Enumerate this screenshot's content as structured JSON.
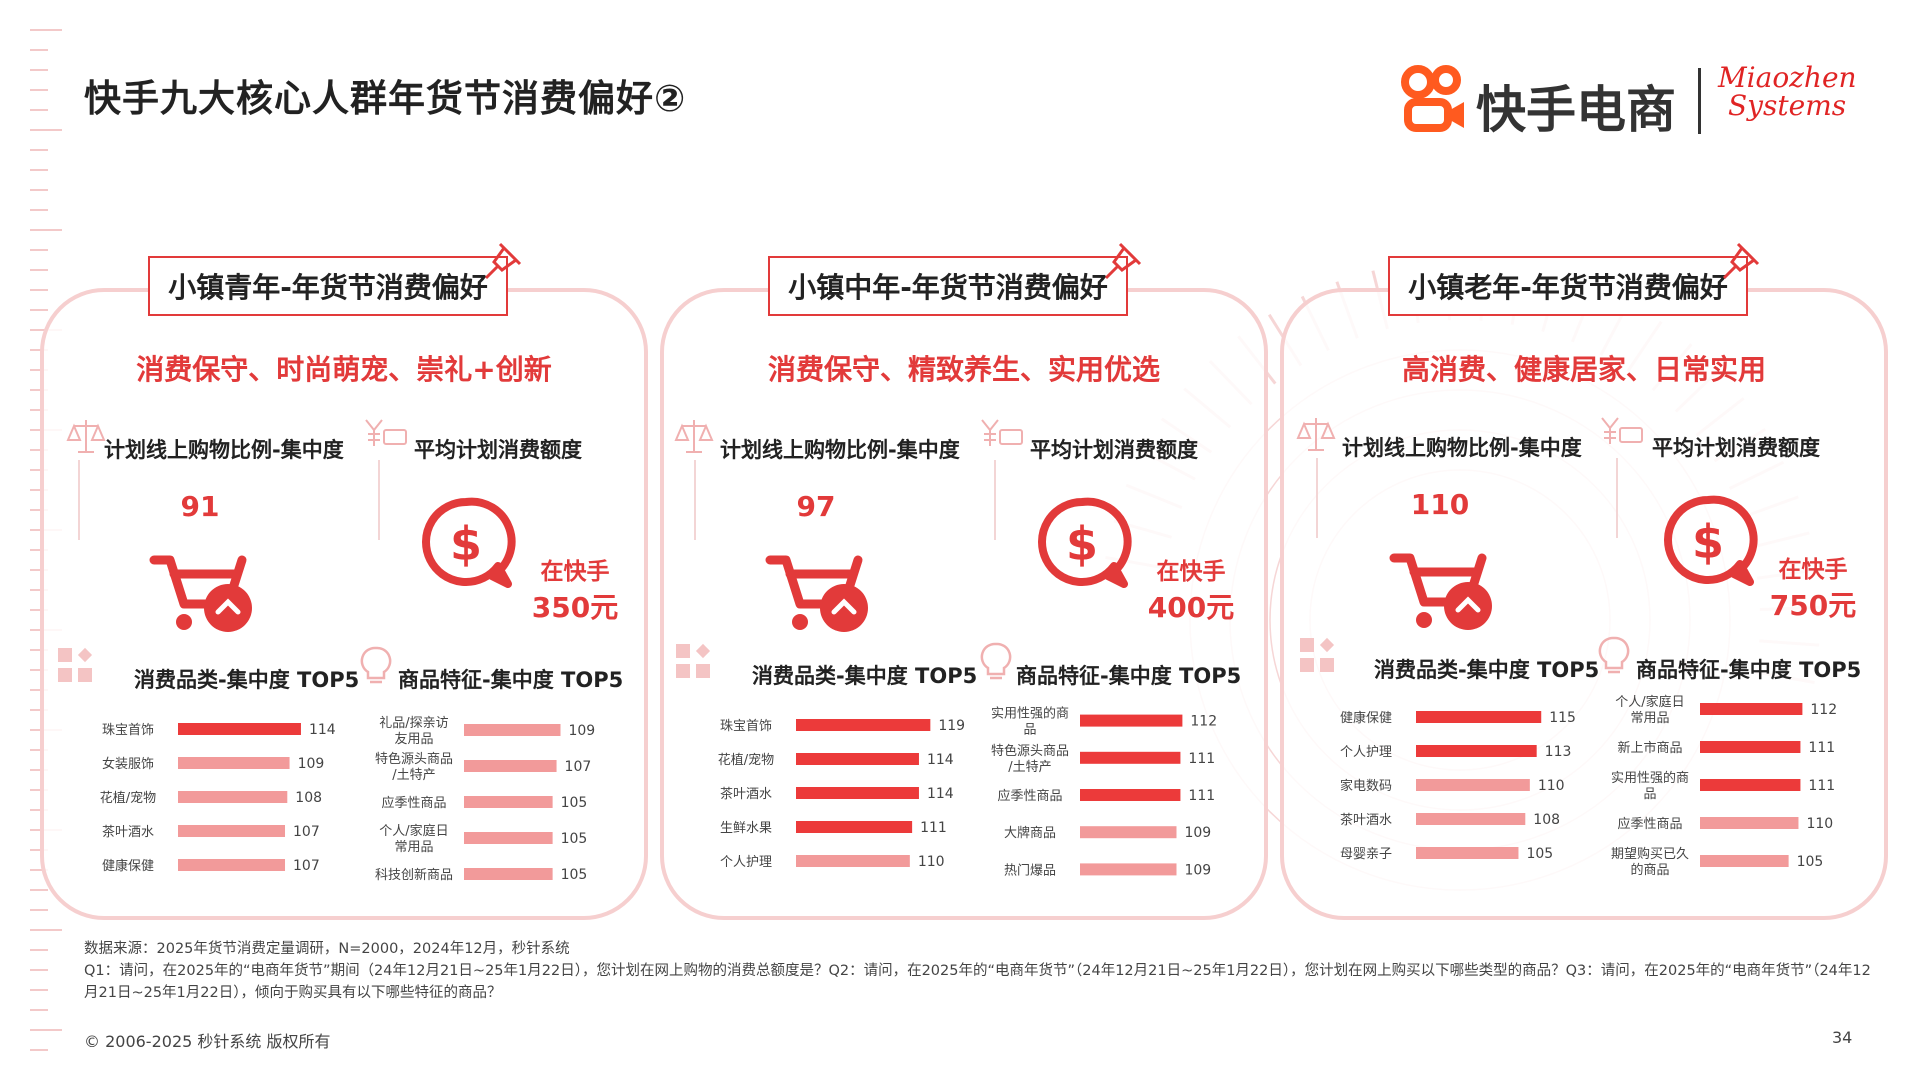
{
  "page": {
    "title": "快手九大核心人群年货节消费偏好②",
    "brand_kuaishou": "快手电商",
    "brand_miaozhen_line1": "Miaozhen",
    "brand_miaozhen_line2": "Systems",
    "footnote_source": "数据来源：2025年货节消费定量调研，N=2000，2024年12月，秒针系统",
    "footnote_questions": "Q1：请问，在2025年的“电商年货节”期间（24年12月21日~25年1月22日），您计划在网上购物的消费总额度是？Q2：请问，在2025年的“电商年货节”（24年12月21日~25年1月22日），您计划在网上购买以下哪些类型的商品？Q3：请问，在2025年的“电商年货节”（24年12月21日~25年1月22日），倾向于购买具有以下哪些特征的商品？",
    "copyright": "© 2006-2025 秒针系统 版权所有",
    "page_number": "34"
  },
  "labels": {
    "online_ratio": "计划线上购物比例-集中度",
    "avg_spend": "平均计划消费额度",
    "category_top5": "消费品类-集中度 TOP5",
    "feature_top5": "商品特征-集中度 TOP5",
    "on_kuaishou": "在快手"
  },
  "colors": {
    "accent": "#e23a3a",
    "bar_strong": "#ec3a3a",
    "bar_light": "#f29a9a"
  },
  "panels": [
    {
      "title": "小镇青年-年货节消费偏好",
      "slogan": "消费保守、时尚萌宠、崇礼+创新",
      "online_index": "91",
      "avg_spend": "350元"
    },
    {
      "title": "小镇中年-年货节消费偏好",
      "slogan": "消费保守、精致养生、实用优选",
      "online_index": "97",
      "avg_spend": "400元"
    },
    {
      "title": "小镇老年-年货节消费偏好",
      "slogan": "高消费、健康居家、日常实用",
      "online_index": "110",
      "avg_spend": "750元"
    }
  ],
  "chart_data": [
    {
      "type": "bar",
      "orientation": "horizontal",
      "title": "消费品类-集中度 TOP5",
      "categories": [
        "珠宝首饰",
        "女装服饰",
        "花植/宠物",
        "茶叶酒水",
        "健康保健"
      ],
      "values": [
        114,
        109,
        108,
        107,
        107
      ],
      "highlight": [
        true,
        false,
        false,
        false,
        false
      ]
    },
    {
      "type": "bar",
      "orientation": "horizontal",
      "title": "商品特征-集中度 TOP5",
      "categories": [
        "礼品/探亲访友用品",
        "特色源头商品/土特产",
        "应季性商品",
        "个人/家庭日常用品",
        "科技创新商品"
      ],
      "values": [
        109,
        107,
        105,
        105,
        105
      ],
      "highlight": [
        false,
        false,
        false,
        false,
        false
      ]
    },
    {
      "type": "bar",
      "orientation": "horizontal",
      "title": "消费品类-集中度 TOP5",
      "categories": [
        "珠宝首饰",
        "花植/宠物",
        "茶叶酒水",
        "生鲜水果",
        "个人护理"
      ],
      "values": [
        119,
        114,
        114,
        111,
        110
      ],
      "highlight": [
        true,
        true,
        true,
        true,
        false
      ]
    },
    {
      "type": "bar",
      "orientation": "horizontal",
      "title": "商品特征-集中度 TOP5",
      "categories": [
        "实用性强的商品",
        "特色源头商品/土特产",
        "应季性商品",
        "大牌商品",
        "热门爆品"
      ],
      "values": [
        112,
        111,
        111,
        109,
        109
      ],
      "highlight": [
        true,
        true,
        true,
        false,
        false
      ]
    },
    {
      "type": "bar",
      "orientation": "horizontal",
      "title": "消费品类-集中度 TOP5",
      "categories": [
        "健康保健",
        "个人护理",
        "家电数码",
        "茶叶酒水",
        "母婴亲子"
      ],
      "values": [
        115,
        113,
        110,
        108,
        105
      ],
      "highlight": [
        true,
        true,
        false,
        false,
        false
      ]
    },
    {
      "type": "bar",
      "orientation": "horizontal",
      "title": "商品特征-集中度 TOP5",
      "categories": [
        "个人/家庭日常用品",
        "新上市商品",
        "实用性强的商品",
        "应季性商品",
        "期望购买已久的商品"
      ],
      "values": [
        112,
        111,
        111,
        110,
        105
      ],
      "highlight": [
        true,
        true,
        true,
        false,
        false
      ]
    }
  ]
}
